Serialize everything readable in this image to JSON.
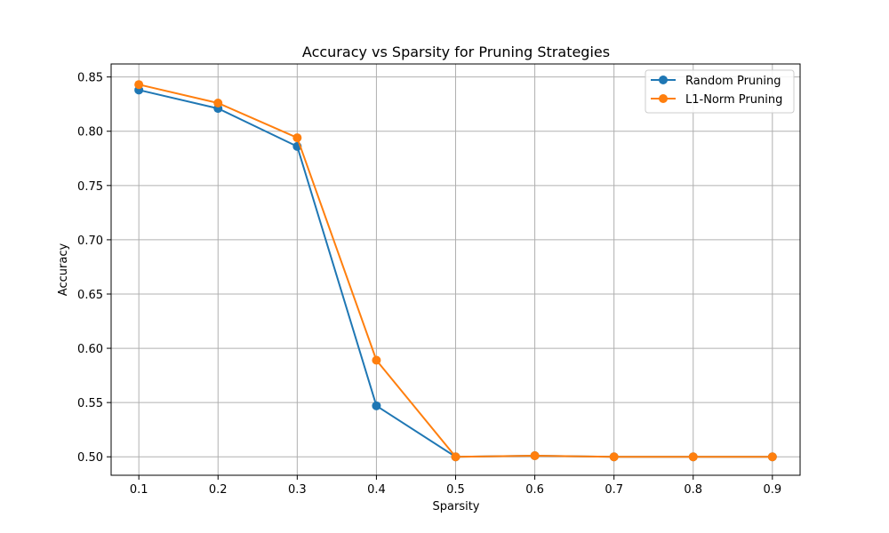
{
  "chart_data": {
    "type": "line",
    "title": "Accuracy vs Sparsity for Pruning Strategies",
    "xlabel": "Sparsity",
    "ylabel": "Accuracy",
    "x": [
      0.1,
      0.2,
      0.3,
      0.4,
      0.5,
      0.6,
      0.7,
      0.8,
      0.9
    ],
    "x_tick_labels": [
      "0.1",
      "0.2",
      "0.3",
      "0.4",
      "0.5",
      "0.6",
      "0.7",
      "0.8",
      "0.9"
    ],
    "y_ticks": [
      0.5,
      0.55,
      0.6,
      0.65,
      0.7,
      0.75,
      0.8,
      0.85
    ],
    "y_tick_labels": [
      "0.50",
      "0.55",
      "0.60",
      "0.65",
      "0.70",
      "0.75",
      "0.80",
      "0.85"
    ],
    "xlim": [
      0.065,
      0.935
    ],
    "ylim": [
      0.483,
      0.862
    ],
    "grid": true,
    "legend_position": "top-right",
    "series": [
      {
        "name": "Random Pruning",
        "color": "#1f77b4",
        "values": [
          0.838,
          0.821,
          0.786,
          0.547,
          0.5,
          0.501,
          0.5,
          0.5,
          0.5
        ]
      },
      {
        "name": "L1-Norm Pruning",
        "color": "#ff7f0e",
        "values": [
          0.843,
          0.826,
          0.794,
          0.589,
          0.5,
          0.501,
          0.5,
          0.5,
          0.5
        ]
      }
    ]
  }
}
